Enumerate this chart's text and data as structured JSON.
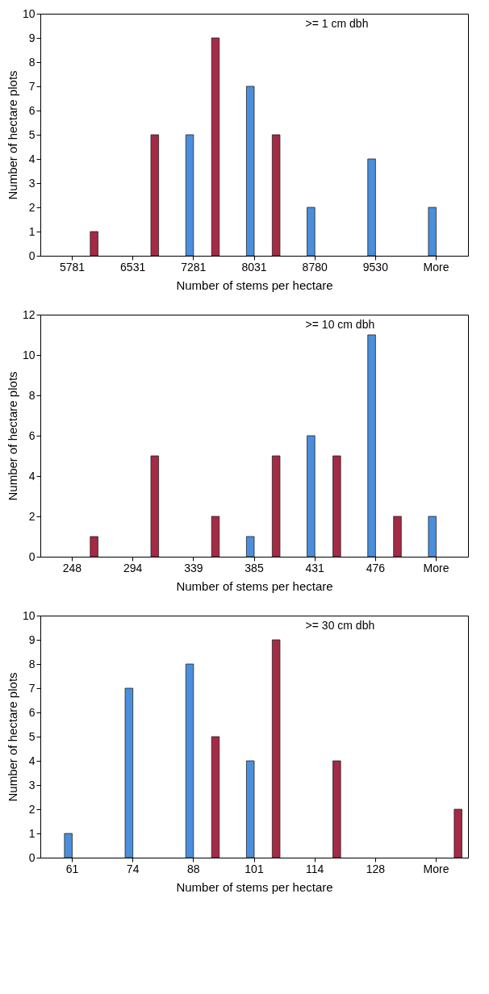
{
  "chart_data": [
    {
      "type": "bar",
      "categories": [
        "5781",
        "6531",
        "7281",
        "8031",
        "8780",
        "9530",
        "More"
      ],
      "xlabel": "Number of stems per hectare",
      "ylabel": "Number of hectare plots",
      "ylim": [
        0,
        10
      ],
      "yticks": [
        0,
        1,
        2,
        3,
        4,
        5,
        6,
        7,
        8,
        9,
        10
      ],
      "annotations": [
        ">= 1 cm dbh"
      ],
      "series": [
        {
          "color": "#4a8fdc",
          "values": [
            0,
            0,
            5,
            7,
            2,
            4,
            2
          ]
        },
        {
          "color": "#a52a45",
          "values": [
            1,
            5,
            9,
            5,
            0,
            0,
            0
          ]
        }
      ]
    },
    {
      "type": "bar",
      "categories": [
        "248",
        "294",
        "339",
        "385",
        "431",
        "476",
        "More"
      ],
      "xlabel": "Number of stems per hectare",
      "ylabel": "Number of hectare plots",
      "ylim": [
        0,
        12
      ],
      "yticks": [
        0,
        2,
        4,
        6,
        8,
        10,
        12
      ],
      "annotations": [
        ">= 10 cm dbh"
      ],
      "series": [
        {
          "color": "#4a8fdc",
          "values": [
            0,
            0,
            0,
            1,
            6,
            11,
            2
          ]
        },
        {
          "color": "#a52a45",
          "values": [
            1,
            5,
            2,
            5,
            5,
            2,
            0
          ]
        }
      ]
    },
    {
      "type": "bar",
      "categories": [
        "61",
        "74",
        "88",
        "101",
        "114",
        "128",
        "More"
      ],
      "xlabel": "Number of stems per hectare",
      "ylabel": "Number of hectare plots",
      "ylim": [
        0,
        10
      ],
      "yticks": [
        0,
        1,
        2,
        3,
        4,
        5,
        6,
        7,
        8,
        9,
        10
      ],
      "annotations": [
        ">= 30 cm dbh"
      ],
      "series": [
        {
          "color": "#4a8fdc",
          "values": [
            1,
            7,
            8,
            4,
            0,
            0,
            0
          ]
        },
        {
          "color": "#a52a45",
          "values": [
            0,
            0,
            5,
            9,
            4,
            0,
            2
          ]
        }
      ]
    }
  ]
}
